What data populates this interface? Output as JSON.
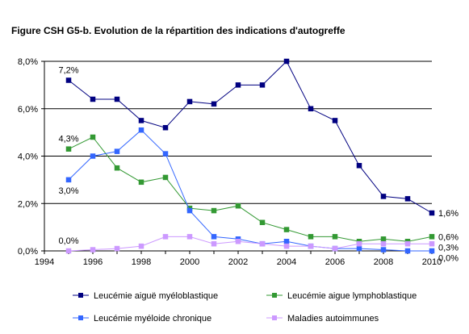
{
  "chart_data": {
    "type": "line",
    "title": "Figure CSH G5-b. Evolution de la répartition des indications d'autogreffe",
    "xlabel": "",
    "ylabel": "",
    "xlim": [
      1994,
      2010
    ],
    "ylim": [
      0,
      8
    ],
    "x_ticks": [
      "1994",
      "1996",
      "1998",
      "2000",
      "2002",
      "2004",
      "2006",
      "2008",
      "2010"
    ],
    "y_ticks": [
      "0,0%",
      "2,0%",
      "4,0%",
      "6,0%",
      "8,0%"
    ],
    "x": [
      1995,
      1996,
      1997,
      1998,
      1999,
      2000,
      2001,
      2002,
      2003,
      2004,
      2005,
      2006,
      2007,
      2008,
      2009,
      2010
    ],
    "grid": "horizontal",
    "legend_position": "bottom",
    "series": [
      {
        "name": "Leucémie aiguë myéloblastique",
        "color": "#000080",
        "marker": "square",
        "values": [
          7.2,
          6.4,
          6.4,
          5.5,
          5.2,
          6.3,
          6.2,
          7.0,
          7.0,
          8.0,
          6.0,
          5.5,
          3.6,
          2.3,
          2.2,
          1.6
        ]
      },
      {
        "name": "Leucémie aigue lymphoblastique",
        "color": "#339933",
        "marker": "square",
        "values": [
          4.3,
          4.8,
          3.5,
          2.9,
          3.1,
          1.8,
          1.7,
          1.9,
          1.2,
          0.9,
          0.6,
          0.6,
          0.4,
          0.5,
          0.4,
          0.6
        ]
      },
      {
        "name": "Leucémie myéloide chronique",
        "color": "#3366ff",
        "marker": "square",
        "values": [
          3.0,
          4.0,
          4.2,
          5.1,
          4.1,
          1.7,
          0.6,
          0.5,
          0.3,
          0.4,
          0.2,
          0.1,
          0.1,
          0.05,
          0.0,
          0.0
        ]
      },
      {
        "name": "Maladies autoimmunes",
        "color": "#cc99ff",
        "marker": "square",
        "values": [
          0.0,
          0.05,
          0.1,
          0.2,
          0.6,
          0.6,
          0.3,
          0.4,
          0.3,
          0.2,
          0.2,
          0.1,
          0.3,
          0.3,
          0.3,
          0.3
        ]
      }
    ],
    "annotations": [
      {
        "text": "7,2%",
        "series": 0,
        "index": 0,
        "pos": "above"
      },
      {
        "text": "4,3%",
        "series": 1,
        "index": 0,
        "pos": "above"
      },
      {
        "text": "3,0%",
        "series": 2,
        "index": 0,
        "pos": "below"
      },
      {
        "text": "0,0%",
        "series": 3,
        "index": 0,
        "pos": "above"
      },
      {
        "text": "1,6%",
        "series": 0,
        "index": 15,
        "pos": "right"
      },
      {
        "text": "0,6%",
        "series": 1,
        "index": 15,
        "pos": "right"
      },
      {
        "text": "0,3%",
        "series": 3,
        "index": 15,
        "pos": "right"
      },
      {
        "text": "0,0%",
        "series": 2,
        "index": 15,
        "pos": "right-below"
      }
    ]
  }
}
